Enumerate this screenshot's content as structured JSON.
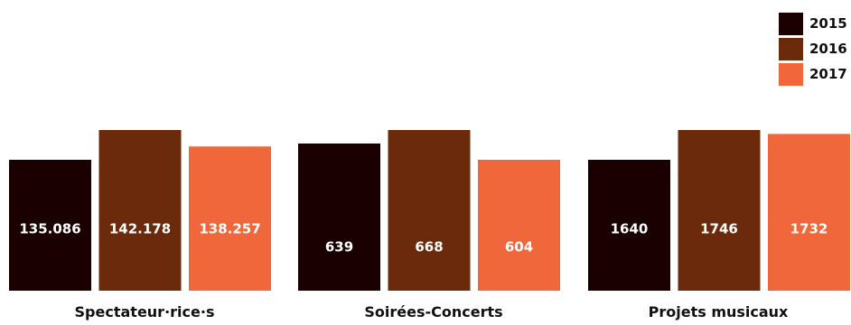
{
  "chart_data": {
    "type": "bar",
    "categories": [
      "Spectateur·rice·s",
      "Soirées-Concerts",
      "Projets musicaux"
    ],
    "series": [
      {
        "name": "2015",
        "color": "#1a0000",
        "values": [
          135086,
          639,
          1640
        ],
        "labels": [
          "135.086",
          "639",
          "1640"
        ]
      },
      {
        "name": "2016",
        "color": "#6b2a0c",
        "values": [
          142178,
          668,
          1746
        ],
        "labels": [
          "142.178",
          "668",
          "1746"
        ]
      },
      {
        "name": "2017",
        "color": "#f0673b",
        "values": [
          138257,
          604,
          1732
        ],
        "labels": [
          "138.257",
          "604",
          "1732"
        ]
      }
    ],
    "legend_position": "top-right",
    "independent_scale_per_group": true
  }
}
